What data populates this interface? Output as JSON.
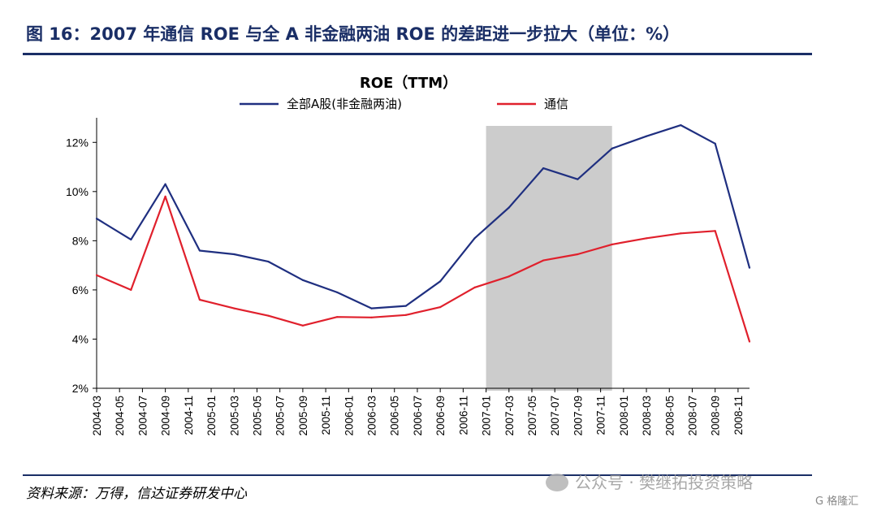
{
  "figure": {
    "title": "图 16：2007 年通信 ROE 与全 A 非金融两油 ROE 的差距进一步拉大（单位：%）",
    "source": "资料来源：万得，信达证券研发中心",
    "watermark": "公众号 · 樊继拓投资策略",
    "corner_badge": "G 格隆汇"
  },
  "colors": {
    "series_a": "#1f2f80",
    "series_b": "#e0202c",
    "shade": "#cccccc",
    "brand": "#1a2e66"
  },
  "chart_data": {
    "type": "line",
    "title": "ROE（TTM）",
    "xlabel": "",
    "ylabel": "",
    "y_tick_format": "percent",
    "ylim": [
      2,
      13
    ],
    "yticks": [
      2,
      4,
      6,
      8,
      10,
      12
    ],
    "x_ticks": [
      "2004-03",
      "2004-05",
      "2004-07",
      "2004-09",
      "2004-11",
      "2005-01",
      "2005-03",
      "2005-05",
      "2005-07",
      "2005-09",
      "2005-11",
      "2006-01",
      "2006-03",
      "2006-05",
      "2006-07",
      "2006-09",
      "2006-11",
      "2007-01",
      "2007-03",
      "2007-05",
      "2007-07",
      "2007-09",
      "2007-11",
      "2008-01",
      "2008-03",
      "2008-05",
      "2008-07",
      "2008-09",
      "2008-11"
    ],
    "x_tick_labels": [
      "2004-03",
      "2004-05",
      "2004-07",
      "2004-09",
      "2004-11",
      "2005-01",
      "2005-03",
      "2005-05",
      "2005-07",
      "2005-09",
      "2005-11",
      "2006-01",
      "2006-03",
      "2006-05",
      "2006-07",
      "2006-09",
      "2006-11",
      "2007-01",
      "2007-03",
      "2007-05",
      "2007-07",
      "2007-09",
      "2007-11",
      "2008-01",
      "2008-03",
      "2008-05",
      "2008-07",
      "2008-09",
      "2008-11"
    ],
    "x_end": "2008-12",
    "shaded_region": {
      "from": "2007-01",
      "to": "2007-12"
    },
    "legend_position": "top",
    "grid": false,
    "series": [
      {
        "name": "全部A股(非金融两油)",
        "points": [
          {
            "x": "2004-03",
            "y": 8.9
          },
          {
            "x": "2004-06",
            "y": 8.05
          },
          {
            "x": "2004-09",
            "y": 10.3
          },
          {
            "x": "2004-12",
            "y": 7.6
          },
          {
            "x": "2005-03",
            "y": 7.45
          },
          {
            "x": "2005-06",
            "y": 7.15
          },
          {
            "x": "2005-09",
            "y": 6.4
          },
          {
            "x": "2005-12",
            "y": 5.9
          },
          {
            "x": "2006-03",
            "y": 5.25
          },
          {
            "x": "2006-06",
            "y": 5.35
          },
          {
            "x": "2006-09",
            "y": 6.35
          },
          {
            "x": "2006-12",
            "y": 8.1
          },
          {
            "x": "2007-03",
            "y": 9.35
          },
          {
            "x": "2007-06",
            "y": 10.95
          },
          {
            "x": "2007-09",
            "y": 10.5
          },
          {
            "x": "2007-12",
            "y": 11.75
          },
          {
            "x": "2008-03",
            "y": 12.25
          },
          {
            "x": "2008-06",
            "y": 12.7
          },
          {
            "x": "2008-09",
            "y": 11.95
          },
          {
            "x": "2008-12",
            "y": 6.9
          }
        ]
      },
      {
        "name": "通信",
        "points": [
          {
            "x": "2004-03",
            "y": 6.6
          },
          {
            "x": "2004-06",
            "y": 6.0
          },
          {
            "x": "2004-09",
            "y": 9.8
          },
          {
            "x": "2004-12",
            "y": 5.6
          },
          {
            "x": "2005-03",
            "y": 5.25
          },
          {
            "x": "2005-06",
            "y": 4.95
          },
          {
            "x": "2005-09",
            "y": 4.55
          },
          {
            "x": "2005-12",
            "y": 4.9
          },
          {
            "x": "2006-03",
            "y": 4.88
          },
          {
            "x": "2006-06",
            "y": 4.98
          },
          {
            "x": "2006-09",
            "y": 5.3
          },
          {
            "x": "2006-12",
            "y": 6.1
          },
          {
            "x": "2007-03",
            "y": 6.55
          },
          {
            "x": "2007-06",
            "y": 7.2
          },
          {
            "x": "2007-09",
            "y": 7.45
          },
          {
            "x": "2007-12",
            "y": 7.85
          },
          {
            "x": "2008-03",
            "y": 8.1
          },
          {
            "x": "2008-06",
            "y": 8.3
          },
          {
            "x": "2008-09",
            "y": 8.4
          },
          {
            "x": "2008-12",
            "y": 3.9
          }
        ]
      }
    ]
  }
}
